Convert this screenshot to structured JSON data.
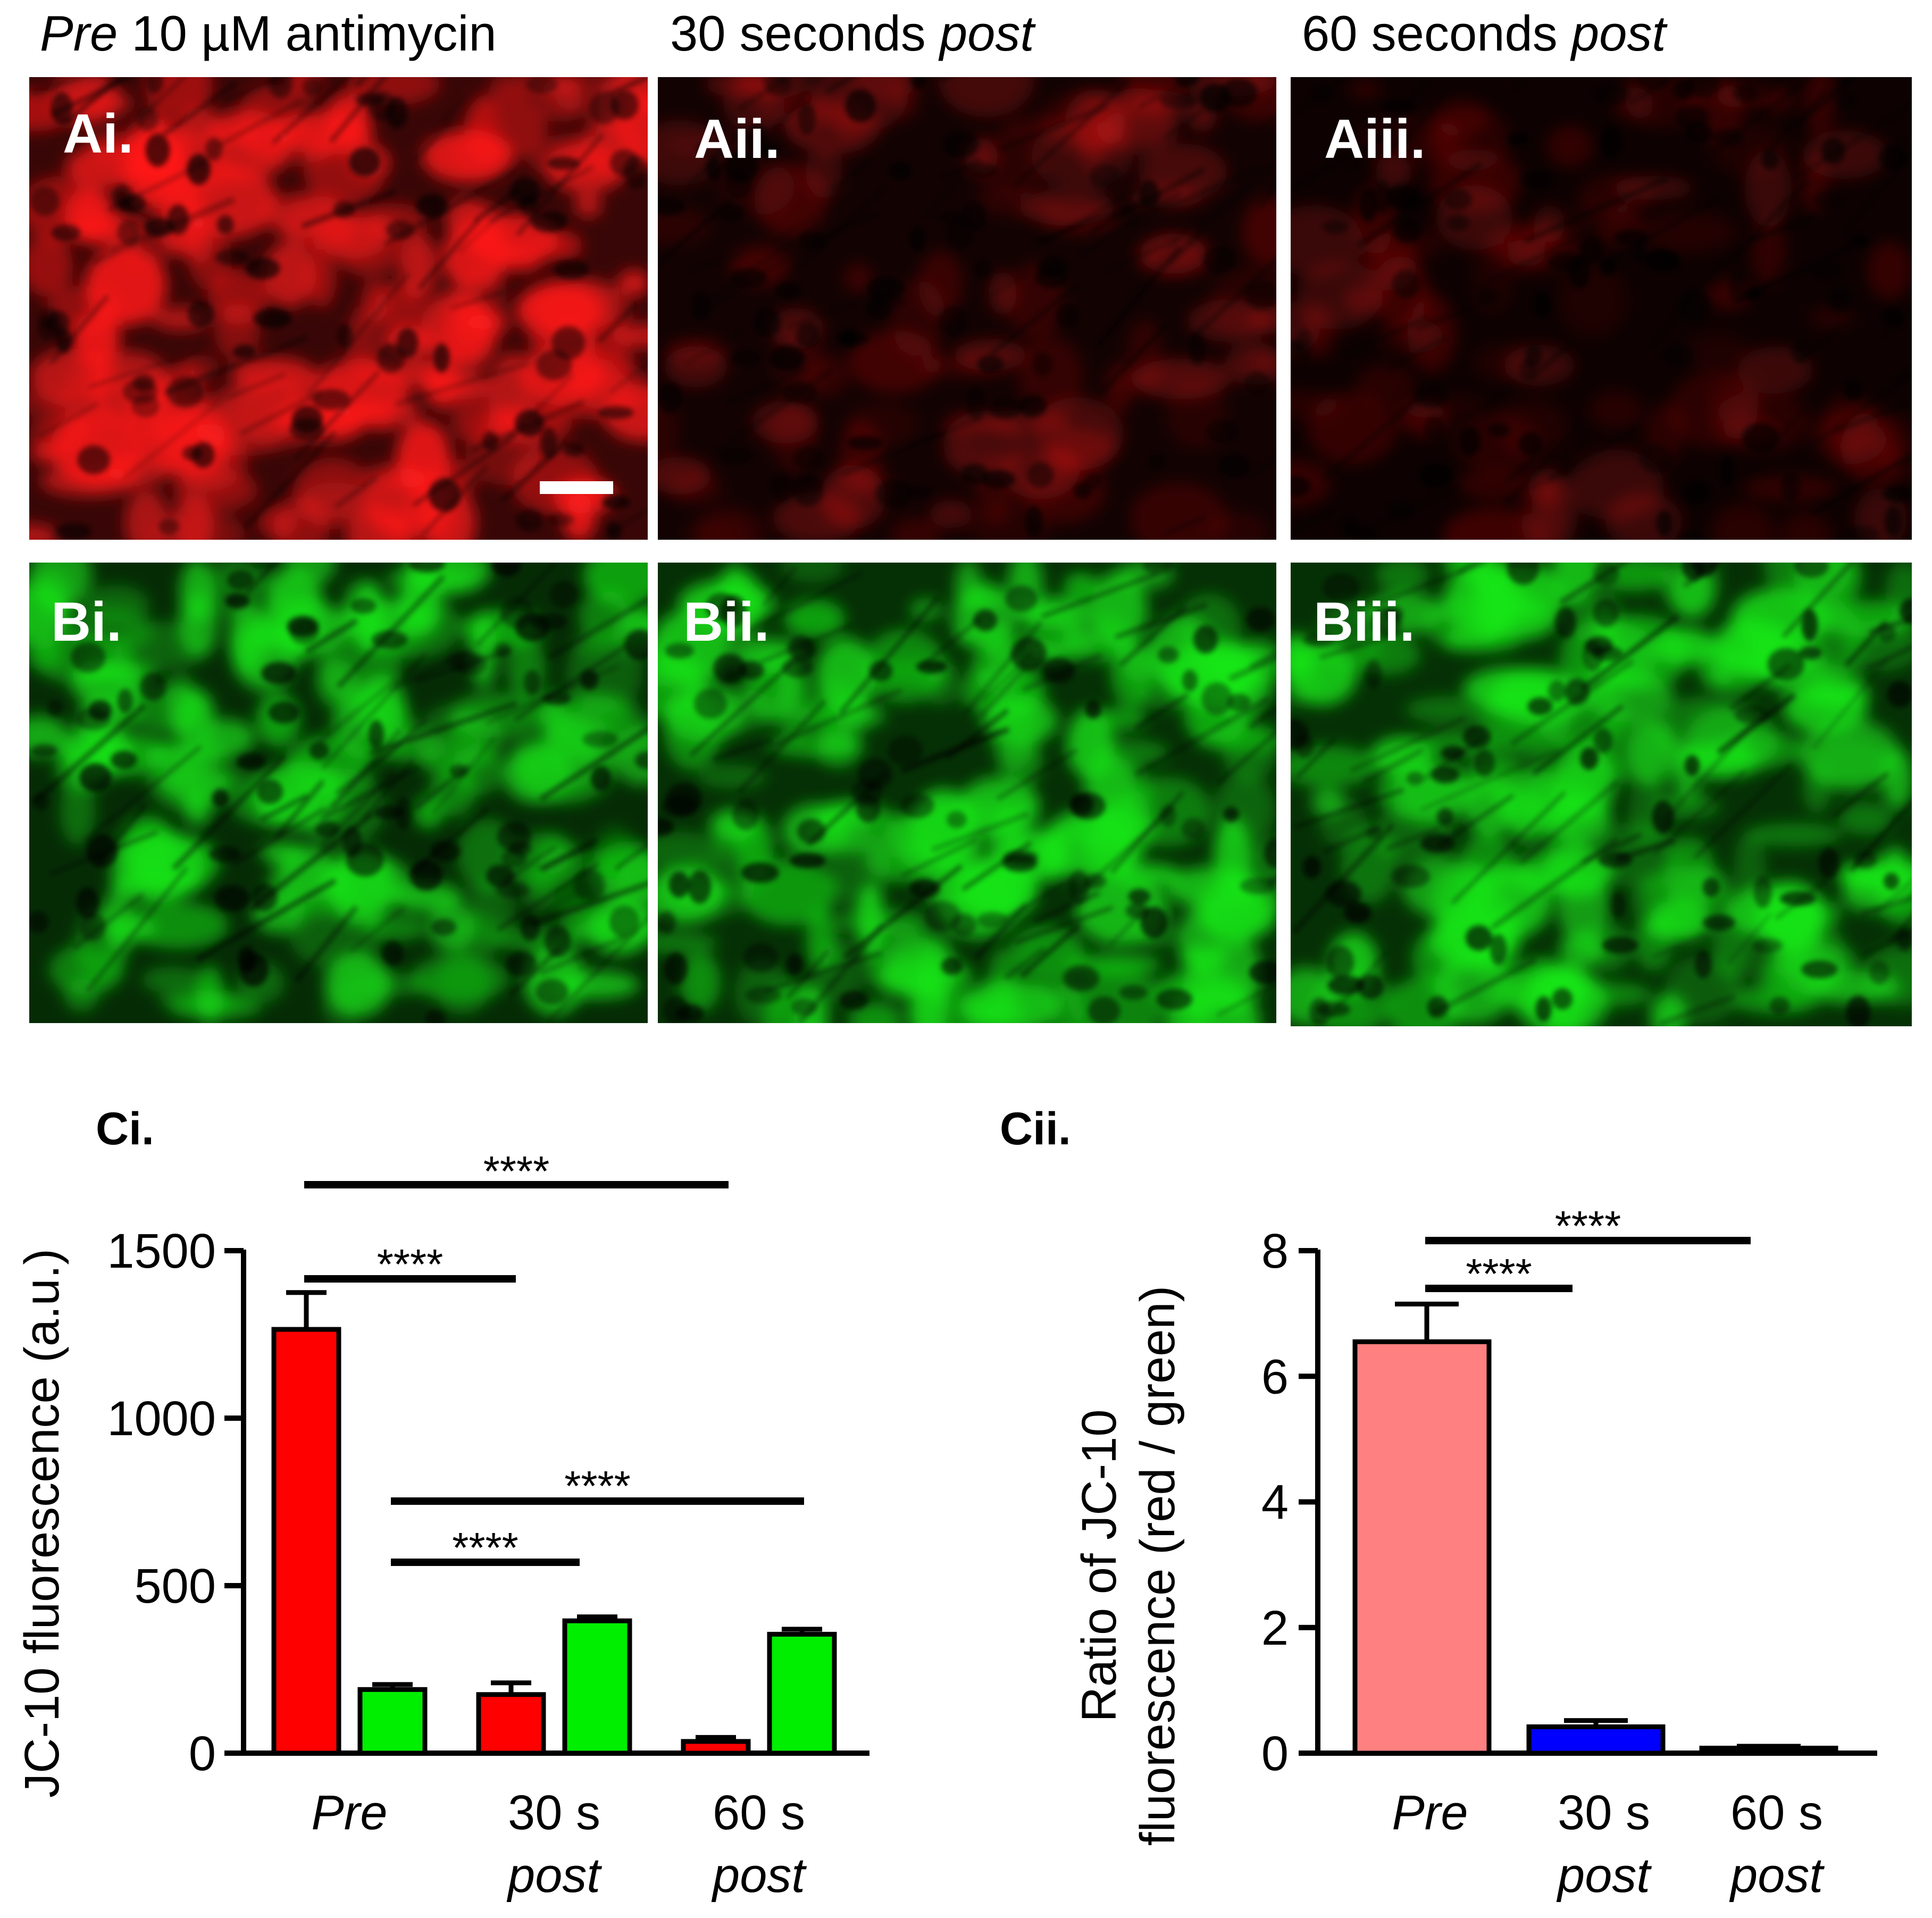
{
  "figure": {
    "column_titles": [
      {
        "italic_prefix": "Pre",
        "text": " 10 µM antimycin",
        "italic_suffix": ""
      },
      {
        "italic_prefix": "",
        "text": "30 seconds ",
        "italic_suffix": "post"
      },
      {
        "italic_prefix": "",
        "text": "60 seconds ",
        "italic_suffix": "post"
      }
    ],
    "red_panels": {
      "labels": [
        "Ai.",
        "Aii.",
        "Aiii."
      ],
      "color": "#ff1a1a",
      "intensity": [
        1.0,
        0.32,
        0.24
      ]
    },
    "green_panels": {
      "labels": [
        "Bi.",
        "Bii.",
        "Biii."
      ],
      "color": "#19e619",
      "intensity": [
        0.85,
        0.92,
        0.95
      ]
    },
    "scale_bar": "white-bar",
    "chart_labels": [
      "Ci.",
      "Cii."
    ]
  },
  "chart_data": [
    {
      "type": "bar",
      "ylabel": "JC-10 fluorescence (a.u.)",
      "yticks": [
        "0",
        "500",
        "1000",
        "1500"
      ],
      "ylim": [
        0,
        1500
      ],
      "categories": [
        {
          "line1": "Pre",
          "line2": "",
          "italic1": true
        },
        {
          "line1": "30 s",
          "line2": "post",
          "italic1": false
        },
        {
          "line1": "60 s",
          "line2": "post",
          "italic1": false
        }
      ],
      "series": [
        {
          "color": "#ff0000",
          "values": [
            1265,
            175,
            35
          ],
          "errors": [
            110,
            35,
            12
          ]
        },
        {
          "color": "#00ee00",
          "values": [
            190,
            395,
            355
          ],
          "errors": [
            15,
            12,
            15
          ]
        }
      ],
      "significance": [
        {
          "from_category": 0,
          "to_category": 1,
          "label": "****"
        },
        {
          "from_category": 0,
          "to_category": 2,
          "label": "****"
        },
        {
          "from_category": 0,
          "to_category": 1,
          "label": "****"
        },
        {
          "from_category": 0,
          "to_category": 2,
          "label": "****"
        }
      ],
      "grid": false
    },
    {
      "type": "bar",
      "ylabel_line1": "Ratio of JC-10",
      "ylabel_line2": "fluorescence  (red / green)",
      "yticks": [
        "0",
        "2",
        "4",
        "6",
        "8"
      ],
      "ylim": [
        0,
        8
      ],
      "categories": [
        {
          "line1": "Pre",
          "line2": "",
          "italic1": true
        },
        {
          "line1": "30 s",
          "line2": "post",
          "italic1": false
        },
        {
          "line1": "60 s",
          "line2": "post",
          "italic1": false
        }
      ],
      "values": [
        6.55,
        0.42,
        0.08
      ],
      "errors": [
        0.6,
        0.1,
        0.03
      ],
      "colors": [
        "#ff8080",
        "#0000ff",
        "#000000"
      ],
      "significance": [
        {
          "from_category": 0,
          "to_category": 1,
          "label": "****"
        },
        {
          "from_category": 0,
          "to_category": 2,
          "label": "****"
        }
      ],
      "grid": false
    }
  ]
}
